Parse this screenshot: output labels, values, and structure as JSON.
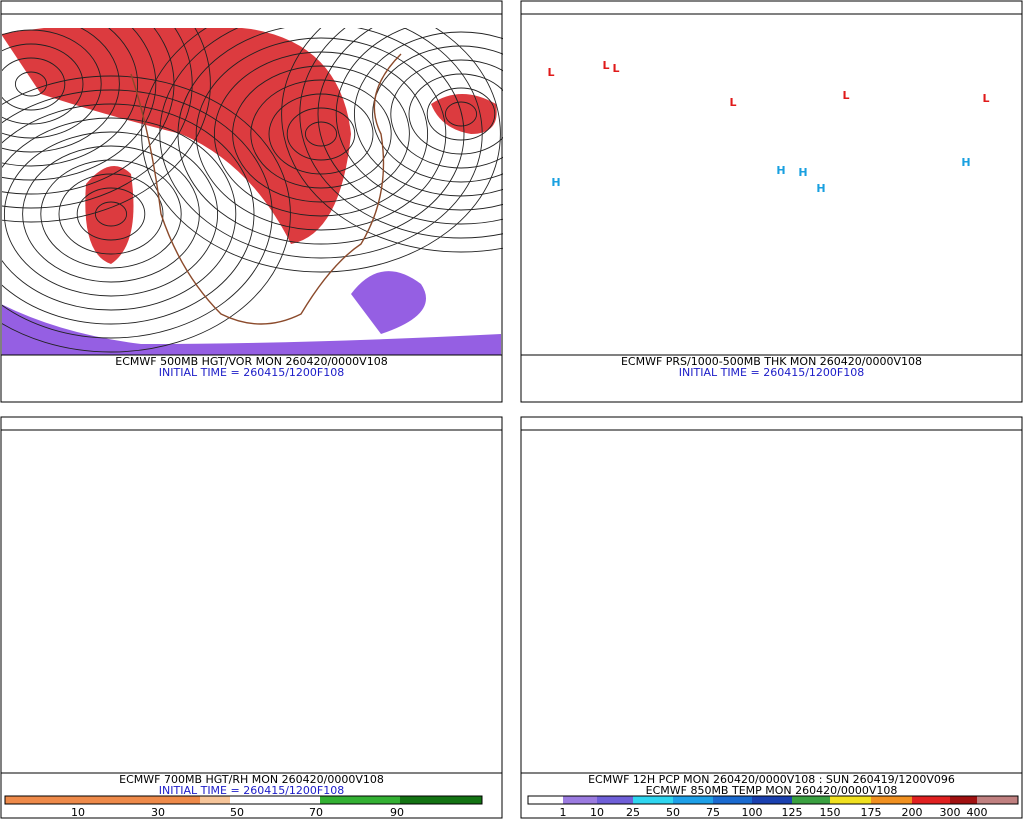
{
  "panels": [
    {
      "caption": "ECMWF 500MB HGT/VOR MON 260420/0000V108",
      "subcaption": "INITIAL TIME = 260415/1200F108"
    },
    {
      "caption": "ECMWF PRS/1000-500MB THK MON 260420/0000V108",
      "subcaption": "INITIAL TIME = 260415/1200F108",
      "centers": [
        "L",
        "L",
        "L",
        "L",
        "L",
        "H",
        "H",
        "H",
        "H",
        "H",
        "L"
      ]
    },
    {
      "caption": "ECMWF 700MB HGT/RH MON 260420/0000V108",
      "subcaption": "INITIAL TIME = 260415/1200F108",
      "colorbar": {
        "labels": [
          10,
          30,
          50,
          70,
          90
        ]
      }
    },
    {
      "caption": "ECMWF 12H PCP MON 260420/0000V108 : SUN 260419/1200V096",
      "subcaption": "ECMWF 850MB TEMP MON 260420/0000V108",
      "colorbar": {
        "labels": [
          1,
          10,
          25,
          50,
          75,
          100,
          125,
          150,
          175,
          200,
          300,
          400
        ]
      }
    }
  ]
}
